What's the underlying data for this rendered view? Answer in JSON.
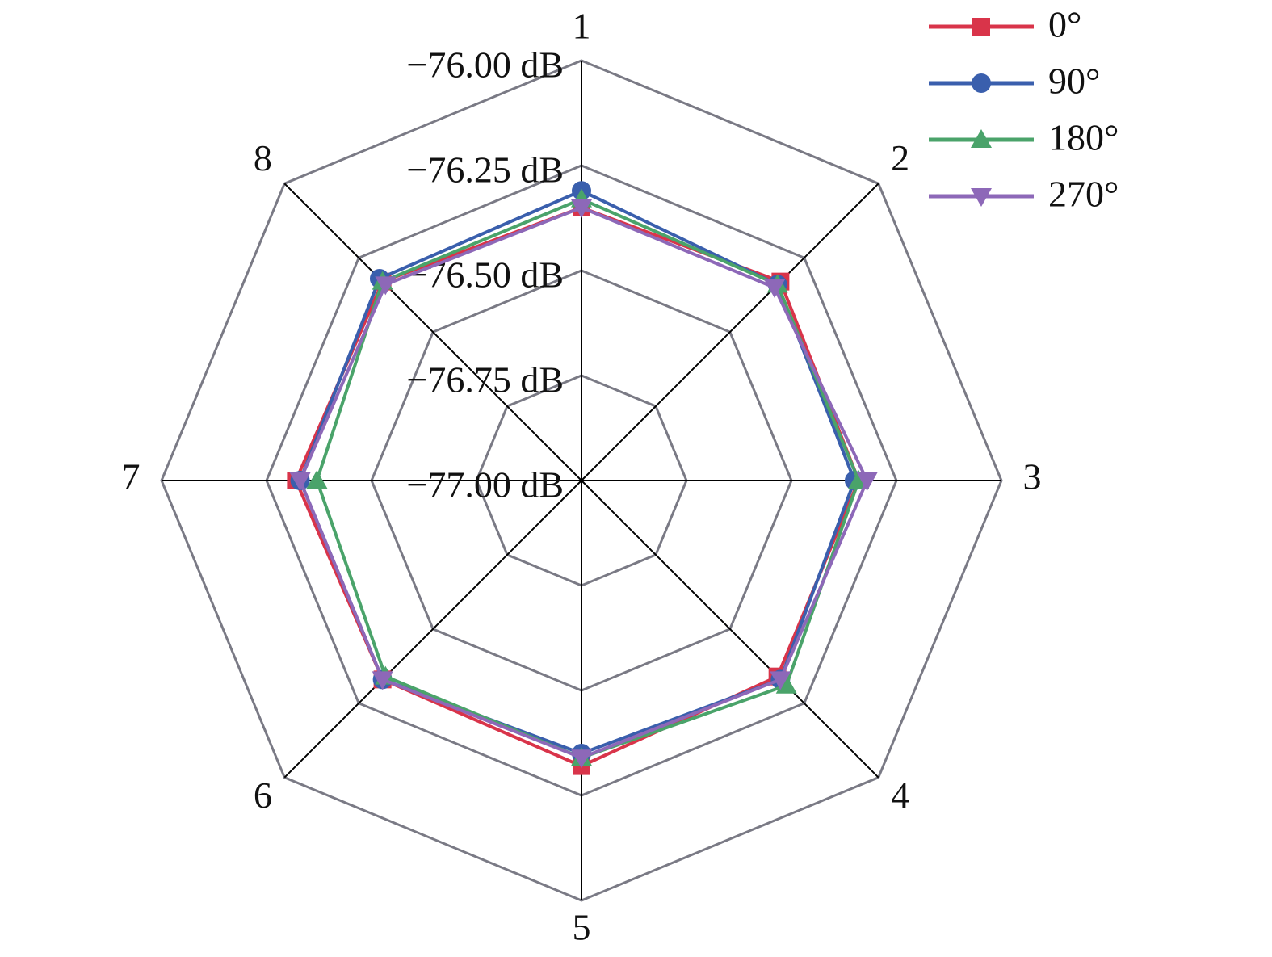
{
  "chart_data": {
    "type": "radar",
    "categories": [
      "1",
      "2",
      "3",
      "4",
      "5",
      "6",
      "7",
      "8"
    ],
    "ylim": [
      -77,
      -76
    ],
    "yticks": [
      {
        "value": -76,
        "label": "−76.00 dB"
      },
      {
        "value": -76.25,
        "label": "−76.25 dB"
      },
      {
        "value": -76.5,
        "label": "−76.50 dB"
      },
      {
        "value": -76.75,
        "label": "−76.75 dB"
      },
      {
        "value": -77,
        "label": "−77.00 dB"
      }
    ],
    "series": [
      {
        "name": "0°",
        "color": "#d9344a",
        "marker": "square",
        "values": [
          -76.35,
          -76.33,
          -76.34,
          -76.34,
          -76.32,
          -76.33,
          -76.32,
          -76.33
        ]
      },
      {
        "name": "90°",
        "color": "#3a5fad",
        "marker": "circle",
        "values": [
          -76.31,
          -76.34,
          -76.35,
          -76.33,
          -76.35,
          -76.33,
          -76.33,
          -76.32
        ]
      },
      {
        "name": "180°",
        "color": "#4aa36a",
        "marker": "triangle-up",
        "values": [
          -76.33,
          -76.34,
          -76.34,
          -76.31,
          -76.34,
          -76.34,
          -76.37,
          -76.33
        ]
      },
      {
        "name": "270°",
        "color": "#8d68b8",
        "marker": "triangle-down",
        "values": [
          -76.35,
          -76.35,
          -76.32,
          -76.33,
          -76.34,
          -76.33,
          -76.33,
          -76.34
        ]
      }
    ]
  }
}
